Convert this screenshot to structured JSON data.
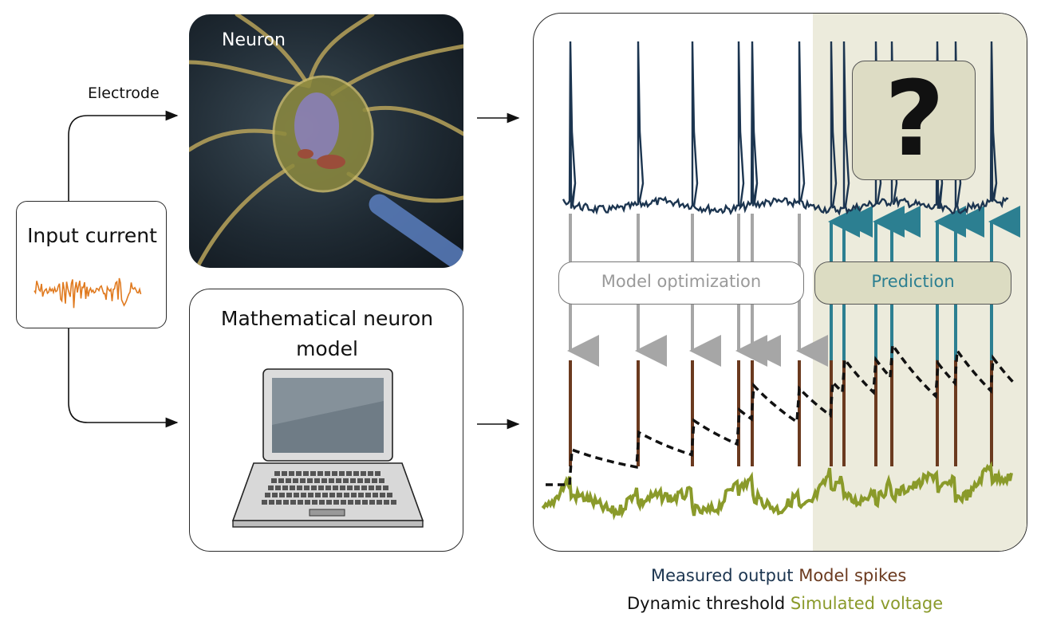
{
  "labels": {
    "input_current": "Input current",
    "electrode": "Electrode",
    "neuron": "Neuron",
    "model": "Mathematical neuron model",
    "model_optimization": "Model optimization",
    "prediction": "Prediction",
    "question": "?"
  },
  "legend": {
    "measured_output": "Measured output",
    "model_spikes": "Model spikes",
    "dynamic_threshold": "Dynamic threshold",
    "simulated_voltage": "Simulated voltage"
  },
  "colors": {
    "measured_output": "#1c3550",
    "model_spikes": "#6b3a1f",
    "dynamic_threshold": "#111111",
    "simulated_voltage": "#8a9a2a",
    "input_trace": "#e07a1f",
    "optimization": "#9a9a9a",
    "prediction": "#2c7f91",
    "prediction_region": "#ecebdc"
  },
  "icons": {
    "neuron_image": "neuron-micrograph-icon",
    "laptop": "laptop-icon",
    "arrow": "arrow-right-icon"
  }
}
